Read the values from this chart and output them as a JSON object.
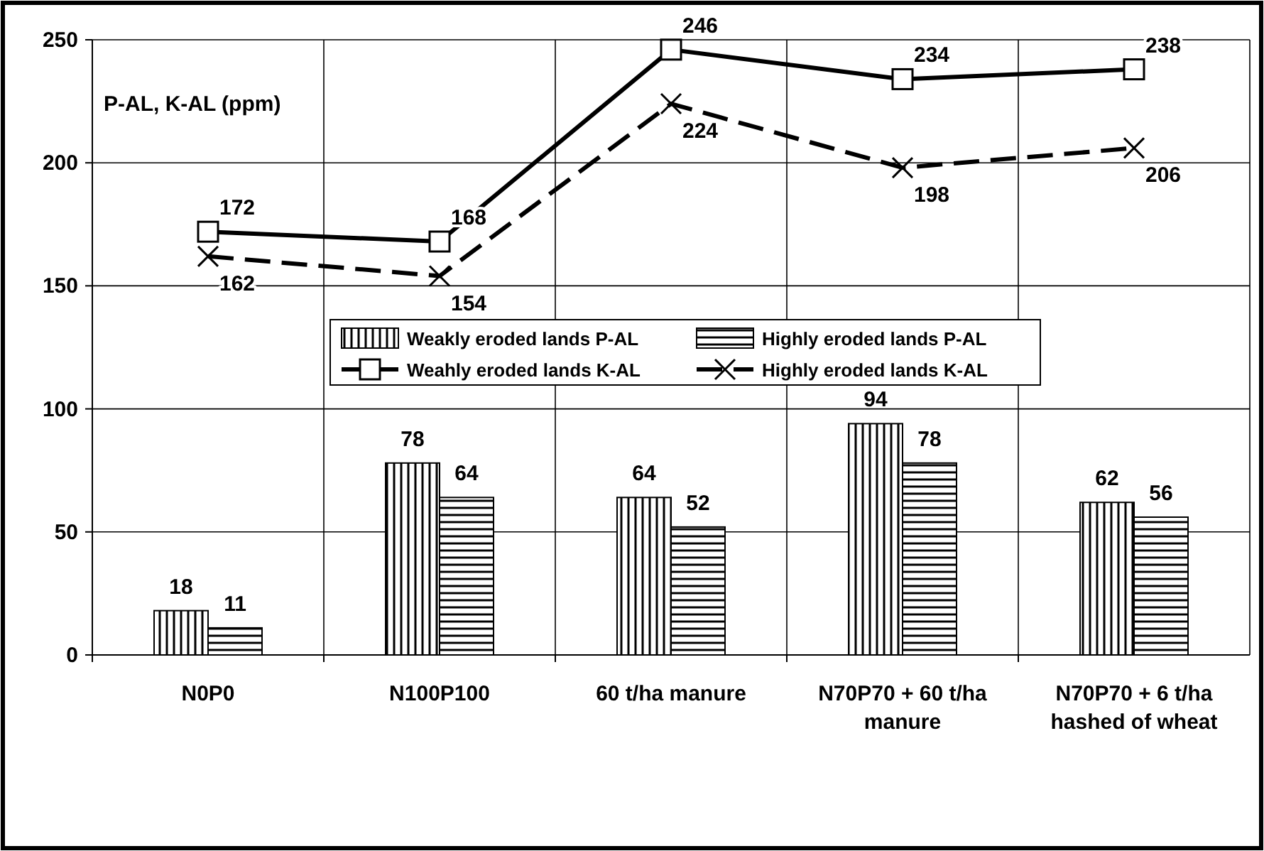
{
  "chart_data": {
    "type": "bar",
    "ylabel": "P-AL, K-AL (ppm)",
    "categories": [
      "N0P0",
      "N100P100",
      "60 t/ha manure",
      "N70P70 + 60 t/ha manure",
      "N70P70 + 6 t/ha hashed of wheat"
    ],
    "series": [
      {
        "name": "Weakly eroded lands P-AL",
        "color": "#000000",
        "values": [
          18,
          78,
          64,
          94,
          62
        ]
      },
      {
        "name": "Highly eroded lands P-AL",
        "color": "#000000",
        "values": [
          11,
          64,
          52,
          78,
          56
        ]
      },
      {
        "name": "Weahly eroded lands K-AL",
        "type": "line",
        "color": "#000000",
        "marker": "square",
        "line_style": "solid",
        "values": [
          172,
          168,
          246,
          234,
          238
        ]
      },
      {
        "name": "Highly eroded lands K-AL",
        "type": "line",
        "color": "#000000",
        "marker": "cross",
        "line_style": "dashed",
        "values": [
          162,
          154,
          224,
          198,
          206
        ]
      }
    ],
    "ylim": [
      0,
      250
    ],
    "yticks": [
      0,
      50,
      100,
      150,
      200,
      250
    ],
    "grid": true,
    "legend": "center",
    "data_labels": true
  }
}
